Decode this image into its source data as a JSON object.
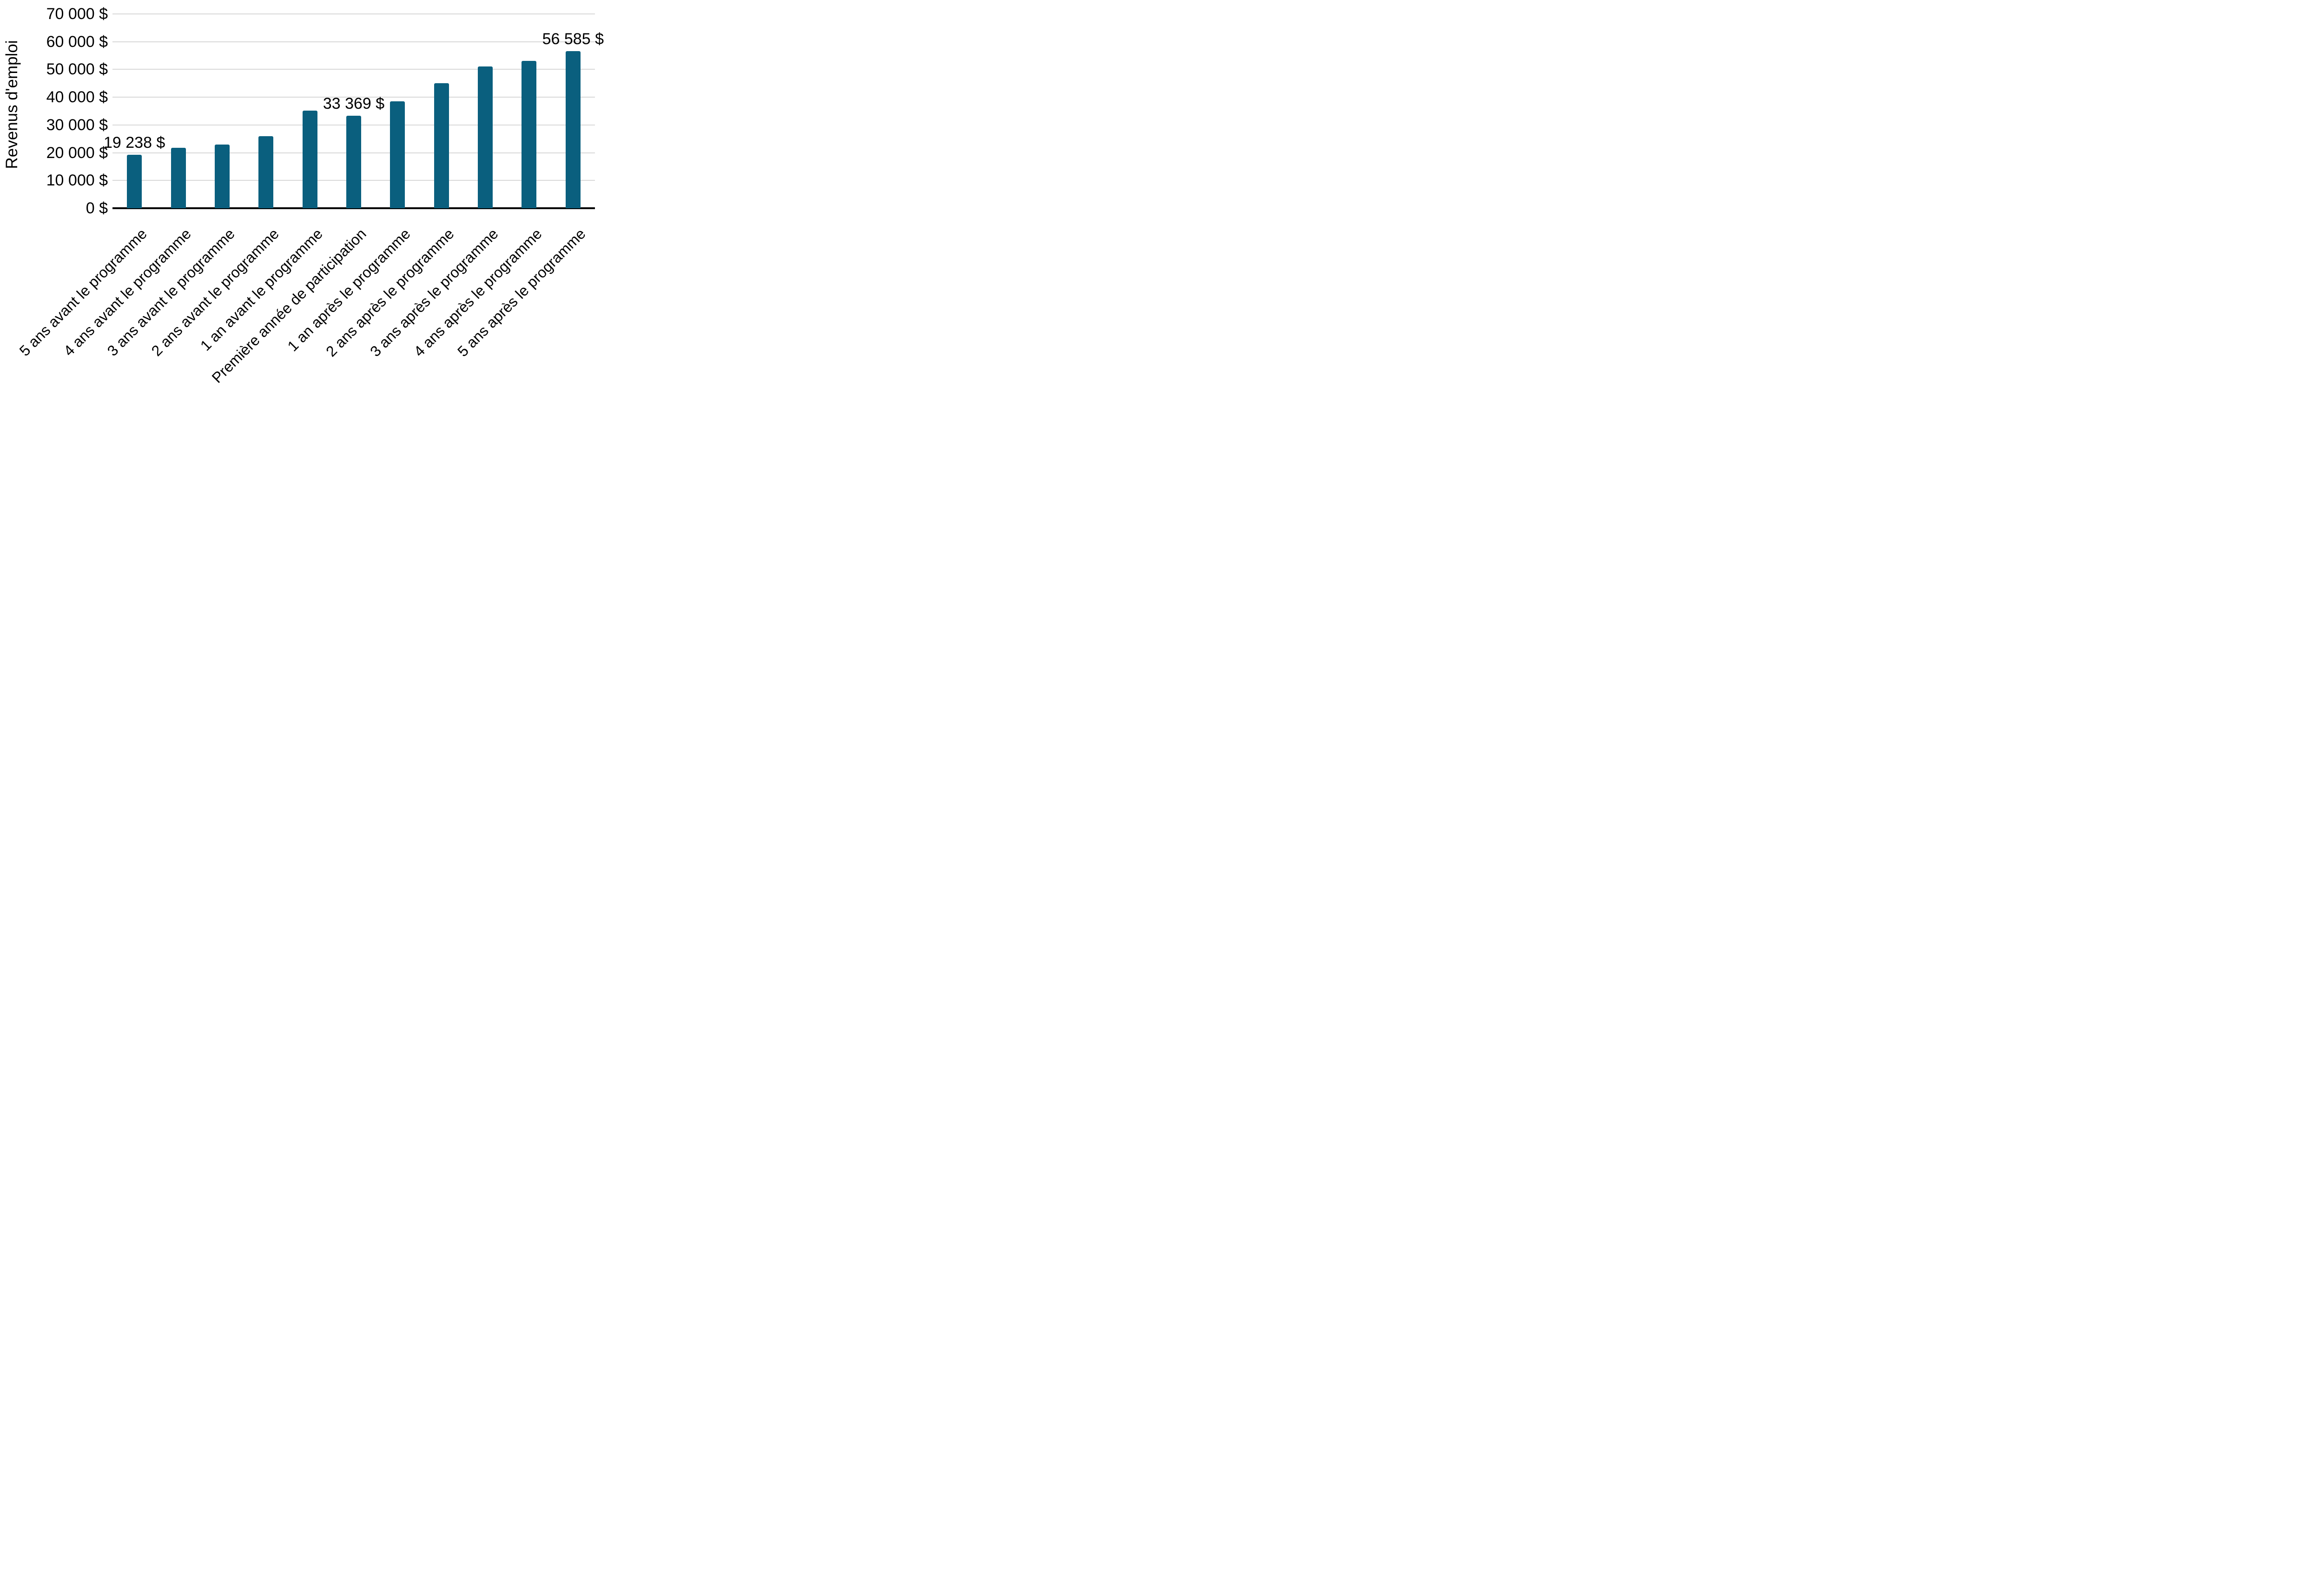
{
  "chart_data": {
    "type": "bar",
    "title": "",
    "ylabel": "Revenus d'emploi",
    "xlabel": "",
    "categories": [
      "5 ans avant le programme",
      "4 ans avant le programme",
      "3 ans avant le programme",
      "2 ans avant le programme",
      "1 an avant le programme",
      "Première année de participation",
      "1 an après le programme",
      "2 ans après le programme",
      "3 ans après le programme",
      "4 ans après le programme",
      "5 ans après le programme"
    ],
    "values": [
      19238,
      21800,
      22900,
      26000,
      35100,
      33369,
      38600,
      45000,
      51000,
      53100,
      56585
    ],
    "data_labels": [
      {
        "index": 0,
        "text": "19 238 $"
      },
      {
        "index": 5,
        "text": "33 369 $"
      },
      {
        "index": 10,
        "text": "56 585 $"
      }
    ],
    "y_ticks": [
      {
        "value": 0,
        "label": "0 $"
      },
      {
        "value": 10000,
        "label": "10 000 $"
      },
      {
        "value": 20000,
        "label": "20 000 $"
      },
      {
        "value": 30000,
        "label": "30 000 $"
      },
      {
        "value": 40000,
        "label": "40 000 $"
      },
      {
        "value": 50000,
        "label": "50 000 $"
      },
      {
        "value": 60000,
        "label": "60 000 $"
      },
      {
        "value": 70000,
        "label": "70 000 $"
      }
    ],
    "ylim": [
      0,
      70000
    ],
    "grid": true,
    "legend": false,
    "x_label_rotation_deg": 45,
    "bar_color": "#0A5F7E",
    "gridline_color": "#D9D9D9",
    "axis_color": "#000000",
    "text_color": "#000000"
  }
}
